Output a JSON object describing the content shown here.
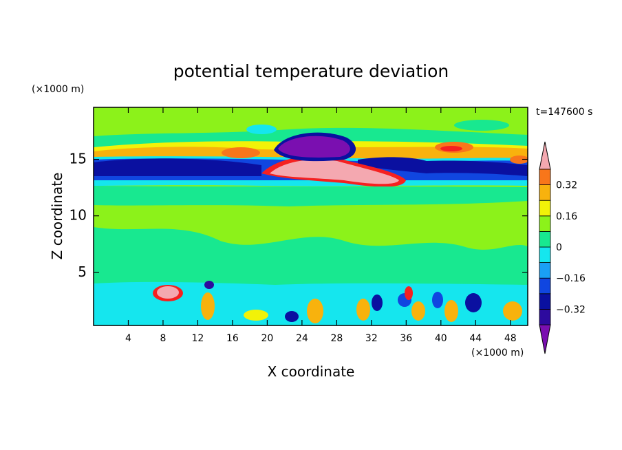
{
  "chart_data": {
    "type": "heatmap",
    "title": "potential temperature deviation",
    "xlabel": "X coordinate",
    "ylabel": "Z coordinate",
    "x_unit": "(×1000 m)",
    "y_unit": "(×1000 m)",
    "time_label": "t=147600 s",
    "xlim": [
      0,
      50
    ],
    "ylim": [
      0.3,
      19.6
    ],
    "x_ticks": [
      4,
      8,
      12,
      16,
      20,
      24,
      28,
      32,
      36,
      40,
      44,
      48
    ],
    "y_ticks": [
      5,
      10,
      15
    ],
    "colorbar": {
      "levels": [
        -0.4,
        -0.32,
        -0.24,
        -0.16,
        -0.08,
        0,
        0.08,
        0.16,
        0.24,
        0.32,
        0.4
      ],
      "labeled_levels": [
        0.32,
        0.16,
        0,
        -0.16,
        -0.32
      ],
      "colors": [
        "#7a0fb0",
        "#2d0a9e",
        "#0a10a0",
        "#1046e0",
        "#1aa0f5",
        "#15e6ee",
        "#18e890",
        "#8cf21a",
        "#f2f208",
        "#f8b20d",
        "#f8761a",
        "#f52020",
        "#f4a8b0"
      ],
      "under_color": "#7a0fb0",
      "over_color": "#f4a8b0"
    },
    "background_value": 0.04,
    "features": [
      {
        "x": 25,
        "z": 16.2,
        "value": -0.4
      },
      {
        "x": 26,
        "z": 14.2,
        "value": 0.42
      },
      {
        "x": 8,
        "z": 14.3,
        "value": -0.35
      },
      {
        "x": 42,
        "z": 14.5,
        "value": -0.3
      },
      {
        "x": 33,
        "z": 14.8,
        "value": -0.32
      },
      {
        "x": 10,
        "z": 15.4,
        "value": 0.22
      },
      {
        "x": 41,
        "z": 15.9,
        "value": 0.35
      },
      {
        "x": 48,
        "z": 15.2,
        "value": 0.28
      },
      {
        "x": 17,
        "z": 15.5,
        "value": 0.3
      },
      {
        "x": 9,
        "z": 3.3,
        "value": 0.42
      },
      {
        "x": 13.5,
        "z": 3.5,
        "value": -0.35
      },
      {
        "x": 44,
        "z": 2.2,
        "value": -0.3
      },
      {
        "x": 36,
        "z": 3.0,
        "value": 0.34
      }
    ]
  }
}
